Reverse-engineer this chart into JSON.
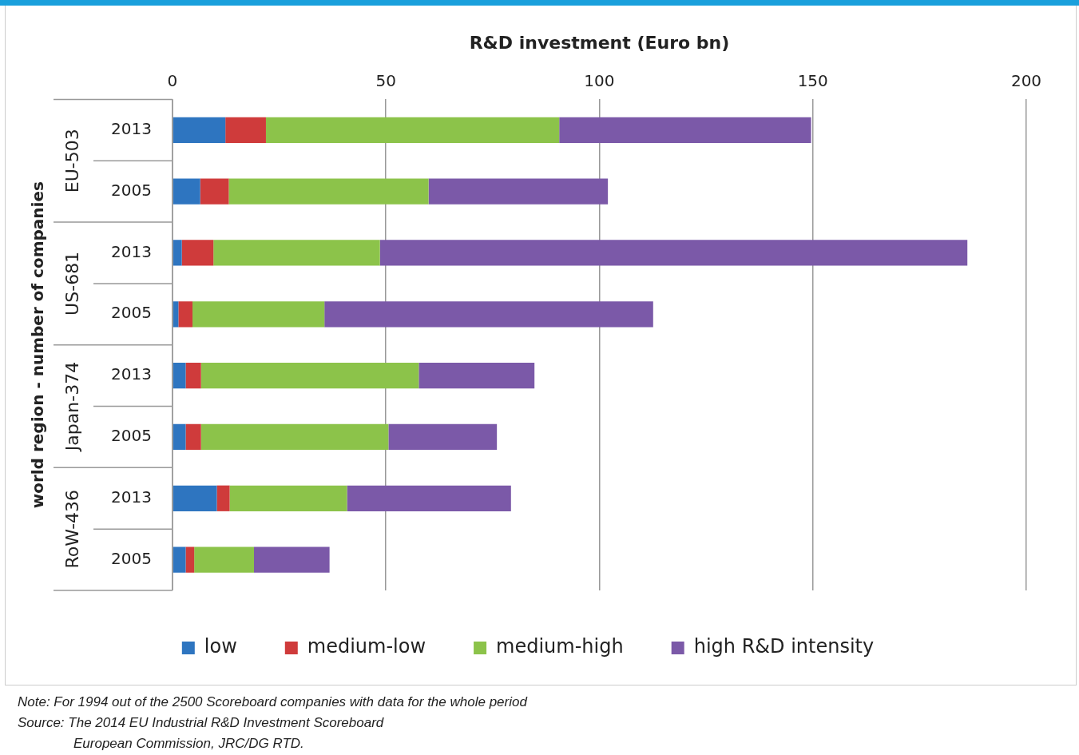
{
  "chart_data": {
    "type": "bar",
    "orientation": "horizontal",
    "stacked": true,
    "xlabel": "R&D investment (Euro bn)",
    "ylabel": "world region - number of companies",
    "categories": [
      "2013",
      "2005",
      "2013",
      "2005",
      "2013",
      "2005",
      "2013",
      "2005"
    ],
    "series": [
      {
        "name": "low",
        "color": "#2e75c0",
        "values": [
          12.4,
          6.5,
          2.2,
          1.4,
          3.1,
          3.1,
          10.4,
          3.1
        ]
      },
      {
        "name": "medium-low",
        "color": "#cf3b3b",
        "values": [
          9.5,
          6.7,
          7.4,
          3.3,
          3.6,
          3.6,
          3.0,
          2.0
        ]
      },
      {
        "name": "medium-high",
        "color": "#8cc34a",
        "values": [
          68.7,
          46.8,
          39.0,
          30.9,
          51.0,
          43.9,
          27.5,
          14.0
        ]
      },
      {
        "name": "high R&D intensity",
        "color": "#7b59a8",
        "values": [
          59.0,
          42.0,
          137.6,
          77.0,
          27.1,
          25.4,
          38.4,
          17.7
        ]
      }
    ],
    "xlim": [
      0,
      200
    ],
    "xticks": [
      0,
      50,
      100,
      150,
      200
    ],
    "grid": "x",
    "legend": "bottom",
    "annotations": [
      "EU-503",
      "US-681",
      "Japan-374",
      "RoW-436",
      "Note: For 1994 out of the 2500 Scoreboard companies with data for the whole period",
      "Source: The 2014 EU Industrial R&D Investment Scoreboard",
      "European Commission, JRC/DG RTD."
    ]
  }
}
